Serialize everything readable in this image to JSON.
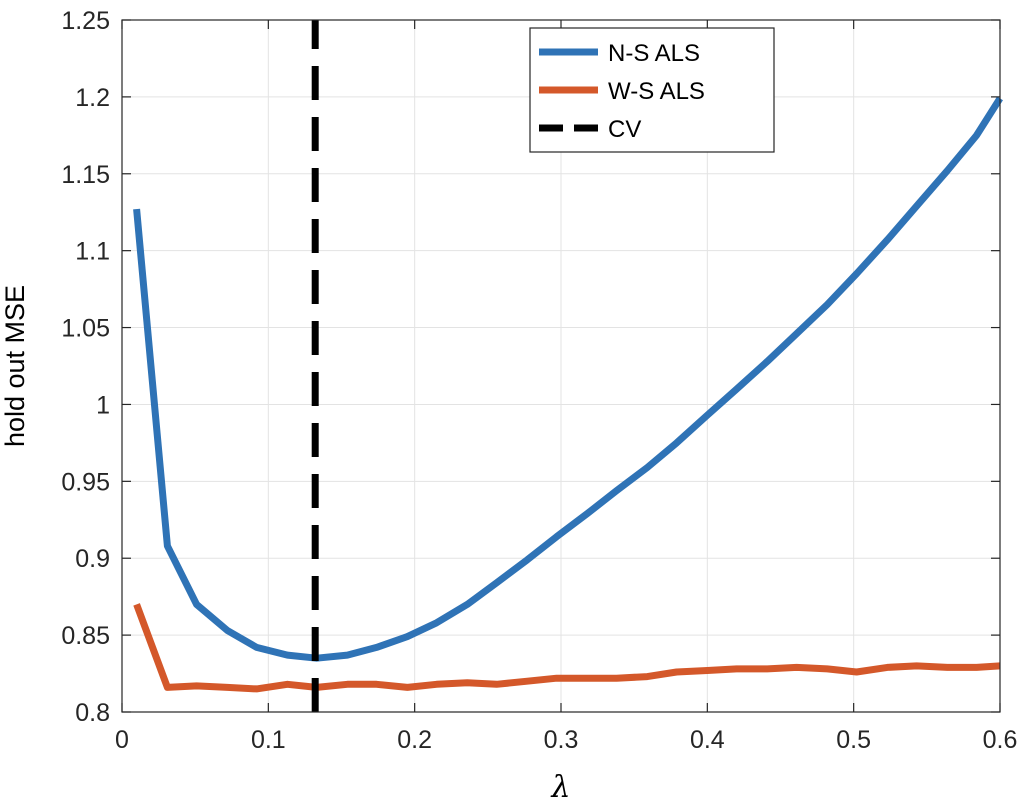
{
  "chart_data": {
    "type": "line",
    "title": "",
    "xlabel": "λ",
    "ylabel": "hold out MSE",
    "xlim": [
      0,
      0.6
    ],
    "ylim": [
      0.8,
      1.25
    ],
    "grid": true,
    "legend_position": "top-right",
    "xticks": [
      0,
      0.1,
      0.2,
      0.3,
      0.4,
      0.5,
      0.6
    ],
    "xtick_labels": [
      "0",
      "0.1",
      "0.2",
      "0.3",
      "0.4",
      "0.5",
      "0.6"
    ],
    "yticks": [
      0.8,
      0.85,
      0.9,
      0.95,
      1.0,
      1.05,
      1.1,
      1.15,
      1.2,
      1.25
    ],
    "ytick_labels": [
      "0.8",
      "0.85",
      "0.9",
      "0.95",
      "1",
      "1.05",
      "1.1",
      "1.15",
      "1.2",
      "1.25"
    ],
    "series": [
      {
        "name": "N-S ALS",
        "color": "#2f73b6",
        "style": "solid",
        "x": [
          0.01,
          0.031,
          0.051,
          0.072,
          0.092,
          0.113,
          0.133,
          0.154,
          0.174,
          0.195,
          0.215,
          0.236,
          0.256,
          0.277,
          0.297,
          0.318,
          0.338,
          0.359,
          0.379,
          0.4,
          0.42,
          0.441,
          0.461,
          0.482,
          0.502,
          0.523,
          0.543,
          0.564,
          0.584,
          0.6
        ],
        "values": [
          1.127,
          0.908,
          0.87,
          0.853,
          0.842,
          0.837,
          0.835,
          0.837,
          0.842,
          0.849,
          0.858,
          0.87,
          0.884,
          0.899,
          0.914,
          0.929,
          0.944,
          0.959,
          0.975,
          0.993,
          1.01,
          1.028,
          1.046,
          1.065,
          1.085,
          1.107,
          1.129,
          1.152,
          1.175,
          1.199
        ]
      },
      {
        "name": "W-S ALS",
        "color": "#d4582a",
        "style": "solid",
        "x": [
          0.01,
          0.031,
          0.051,
          0.072,
          0.092,
          0.113,
          0.133,
          0.154,
          0.174,
          0.195,
          0.215,
          0.236,
          0.256,
          0.277,
          0.297,
          0.318,
          0.338,
          0.359,
          0.379,
          0.4,
          0.42,
          0.441,
          0.461,
          0.482,
          0.502,
          0.523,
          0.543,
          0.564,
          0.584,
          0.6
        ],
        "values": [
          0.87,
          0.816,
          0.817,
          0.816,
          0.815,
          0.818,
          0.816,
          0.818,
          0.818,
          0.816,
          0.818,
          0.819,
          0.818,
          0.82,
          0.822,
          0.822,
          0.822,
          0.823,
          0.826,
          0.827,
          0.828,
          0.828,
          0.829,
          0.828,
          0.826,
          0.829,
          0.83,
          0.829,
          0.829,
          0.83
        ]
      },
      {
        "name": "CV",
        "color": "#000000",
        "style": "dashed",
        "x": [
          0.132,
          0.132
        ],
        "values": [
          0.8,
          1.25
        ]
      }
    ]
  }
}
